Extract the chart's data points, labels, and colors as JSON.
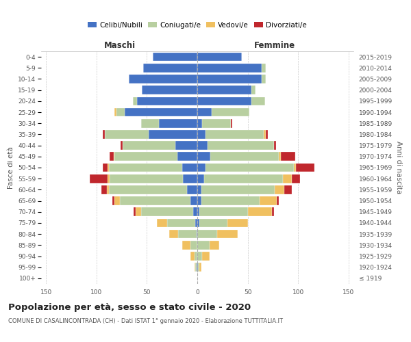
{
  "age_groups": [
    "100+",
    "95-99",
    "90-94",
    "85-89",
    "80-84",
    "75-79",
    "70-74",
    "65-69",
    "60-64",
    "55-59",
    "50-54",
    "45-49",
    "40-44",
    "35-39",
    "30-34",
    "25-29",
    "20-24",
    "15-19",
    "10-14",
    "5-9",
    "0-4"
  ],
  "birth_years": [
    "≤ 1919",
    "1920-1924",
    "1925-1929",
    "1930-1934",
    "1935-1939",
    "1940-1944",
    "1945-1949",
    "1950-1954",
    "1955-1959",
    "1960-1964",
    "1965-1969",
    "1970-1974",
    "1975-1979",
    "1980-1984",
    "1985-1989",
    "1990-1994",
    "1995-1999",
    "2000-2004",
    "2005-2009",
    "2010-2014",
    "2015-2019"
  ],
  "colors": {
    "celibi": "#4472c4",
    "coniugati": "#b8cfa0",
    "vedovi": "#f0c060",
    "divorziati": "#c0272d"
  },
  "maschi_celibi": [
    0,
    1,
    0,
    0,
    1,
    2,
    4,
    7,
    10,
    14,
    15,
    20,
    22,
    48,
    38,
    72,
    60,
    55,
    68,
    54,
    44
  ],
  "maschi_coniugati": [
    0,
    1,
    3,
    7,
    18,
    28,
    52,
    70,
    78,
    73,
    73,
    62,
    52,
    44,
    18,
    8,
    4,
    0,
    0,
    0,
    0
  ],
  "maschi_vedovi": [
    0,
    1,
    4,
    8,
    9,
    10,
    5,
    5,
    2,
    2,
    1,
    1,
    0,
    0,
    0,
    2,
    0,
    0,
    0,
    0,
    0
  ],
  "maschi_divorziati": [
    0,
    0,
    0,
    0,
    0,
    0,
    2,
    2,
    5,
    18,
    5,
    4,
    2,
    2,
    0,
    0,
    0,
    0,
    0,
    0,
    0
  ],
  "femmine_celibi": [
    0,
    1,
    0,
    0,
    0,
    2,
    2,
    4,
    4,
    7,
    8,
    13,
    10,
    8,
    5,
    14,
    54,
    54,
    64,
    64,
    44
  ],
  "femmine_coniugati": [
    0,
    1,
    5,
    12,
    20,
    28,
    48,
    58,
    73,
    78,
    88,
    68,
    66,
    58,
    28,
    38,
    13,
    4,
    4,
    4,
    0
  ],
  "femmine_vedovi": [
    0,
    2,
    7,
    10,
    20,
    20,
    24,
    17,
    9,
    9,
    2,
    2,
    0,
    2,
    0,
    0,
    0,
    0,
    0,
    0,
    0
  ],
  "femmine_divorziati": [
    0,
    0,
    0,
    0,
    0,
    0,
    2,
    2,
    8,
    8,
    18,
    14,
    2,
    2,
    2,
    0,
    0,
    0,
    0,
    0,
    0
  ],
  "xlim": 155,
  "xticks": [
    -150,
    -100,
    -50,
    0,
    50,
    100,
    150
  ],
  "title": "Popolazione per età, sesso e stato civile - 2020",
  "subtitle": "COMUNE DI CASALINCONTRADA (CH) - Dati ISTAT 1° gennaio 2020 - Elaborazione TUTTITALIA.IT",
  "ylabel_left": "Fasce di età",
  "ylabel_right": "Anni di nascita",
  "header_left": "Maschi",
  "header_right": "Femmine",
  "legend": [
    "Celibi/Nubili",
    "Coniugati/e",
    "Vedovi/e",
    "Divorziati/e"
  ]
}
